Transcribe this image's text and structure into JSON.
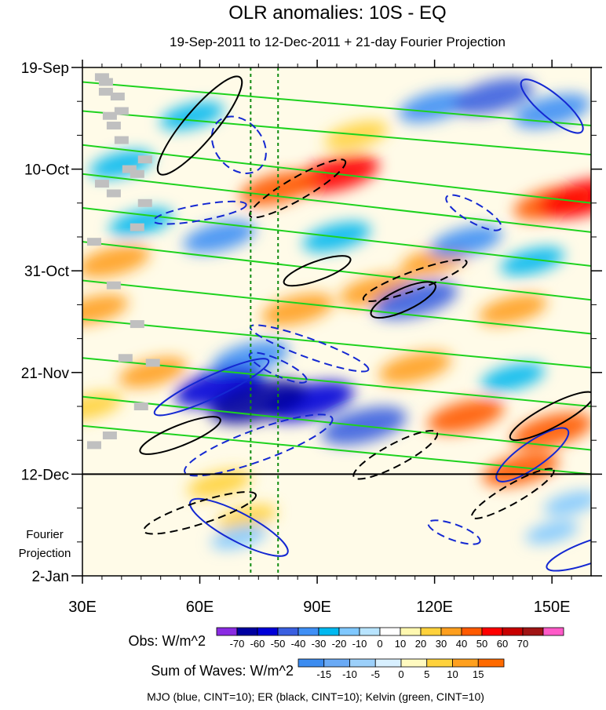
{
  "chart_data": {
    "type": "heatmap",
    "title": "OLR anomalies: 10S - EQ",
    "subtitle": "19-Sep-2011 to 12-Dec-2011 + 21-day Fourier Projection",
    "xlim": [
      30,
      160
    ],
    "x_ticks": [
      {
        "value": 30,
        "label": "30E"
      },
      {
        "value": 60,
        "label": "60E"
      },
      {
        "value": 90,
        "label": "90E"
      },
      {
        "value": 120,
        "label": "120E"
      },
      {
        "value": 150,
        "label": "150E"
      }
    ],
    "y_range_days": [
      0,
      105
    ],
    "y_ticks": [
      {
        "day": 0,
        "label": "19-Sep"
      },
      {
        "day": 21,
        "label": "10-Oct"
      },
      {
        "day": 42,
        "label": "31-Oct"
      },
      {
        "day": 63,
        "label": "21-Nov"
      },
      {
        "day": 84,
        "label": "12-Dec"
      },
      {
        "day": 105,
        "label": "2-Jan"
      }
    ],
    "projection_label_line1": "Fourier",
    "projection_label_line2": "Projection",
    "projection_start_day": 84,
    "reference_lines_lon": [
      73,
      80
    ],
    "obs_colorbar": {
      "label": "Obs: W/m^2",
      "levels": [
        -70,
        -60,
        -50,
        -40,
        -30,
        -20,
        -10,
        0,
        10,
        20,
        30,
        40,
        50,
        60,
        70
      ],
      "colors": [
        "#8a2be2",
        "#0000a0",
        "#0000d8",
        "#3a5fe0",
        "#3f8ff5",
        "#00b8f0",
        "#7fc8ff",
        "#b8e4ff",
        "#ffffff",
        "#fff8b0",
        "#ffd23c",
        "#ff9f1e",
        "#ff5a00",
        "#ff0000",
        "#c80000",
        "#a01414",
        "#ff5ac8"
      ]
    },
    "waves_colorbar": {
      "label": "Sum of Waves: W/m^2",
      "levels": [
        -15,
        -10,
        -5,
        0,
        5,
        10,
        15
      ],
      "colors": [
        "#3c8cf0",
        "#6aaaf5",
        "#9cd0fa",
        "#d8f0ff",
        "#fffac0",
        "#ffd23c",
        "#ffa01e",
        "#ff6a00"
      ]
    },
    "footer": "MJO (blue, CINT=10); ER (black, CINT=10); Kelvin (green, CINT=10)",
    "contour_series": [
      {
        "name": "MJO",
        "color": "#1428d2"
      },
      {
        "name": "ER",
        "color": "#000000"
      },
      {
        "name": "Kelvin",
        "color": "#1ed21e"
      }
    ],
    "anomaly_blobs": [
      {
        "lon": 95,
        "day": 22,
        "value": 50
      },
      {
        "lon": 80,
        "day": 25,
        "value": 40
      },
      {
        "lon": 150,
        "day": 28,
        "value": 40
      },
      {
        "lon": 158,
        "day": 27,
        "value": 55
      },
      {
        "lon": 120,
        "day": 40,
        "value": 30
      },
      {
        "lon": 105,
        "day": 46,
        "value": 35
      },
      {
        "lon": 85,
        "day": 50,
        "value": 35
      },
      {
        "lon": 140,
        "day": 50,
        "value": 30
      },
      {
        "lon": 128,
        "day": 72,
        "value": 40
      },
      {
        "lon": 150,
        "day": 75,
        "value": 45
      },
      {
        "lon": 142,
        "day": 83,
        "value": 40
      },
      {
        "lon": 65,
        "day": 86,
        "value": 25
      },
      {
        "lon": 72,
        "day": 93,
        "value": 20
      },
      {
        "lon": 38,
        "day": 40,
        "value": 35
      },
      {
        "lon": 33,
        "day": 50,
        "value": 30
      },
      {
        "lon": 48,
        "day": 63,
        "value": 30
      },
      {
        "lon": 32,
        "day": 70,
        "value": 25
      },
      {
        "lon": 115,
        "day": 62,
        "value": 35
      },
      {
        "lon": 100,
        "day": 14,
        "value": 25
      },
      {
        "lon": 128,
        "day": 36,
        "value": -35
      },
      {
        "lon": 115,
        "day": 48,
        "value": -50
      },
      {
        "lon": 73,
        "day": 60,
        "value": -40
      },
      {
        "lon": 65,
        "day": 66,
        "value": -55
      },
      {
        "lon": 88,
        "day": 69,
        "value": -55
      },
      {
        "lon": 75,
        "day": 69,
        "value": -65
      },
      {
        "lon": 102,
        "day": 74,
        "value": -50
      },
      {
        "lon": 120,
        "day": 8,
        "value": -35
      },
      {
        "lon": 135,
        "day": 6,
        "value": -45
      },
      {
        "lon": 150,
        "day": 9,
        "value": -40
      },
      {
        "lon": 65,
        "day": 35,
        "value": -35
      },
      {
        "lon": 45,
        "day": 32,
        "value": -25
      },
      {
        "lon": 95,
        "day": 35,
        "value": -30
      },
      {
        "lon": 145,
        "day": 40,
        "value": -25
      },
      {
        "lon": 140,
        "day": 64,
        "value": -25
      },
      {
        "lon": 40,
        "day": 20,
        "value": -25
      },
      {
        "lon": 58,
        "day": 10,
        "value": -25
      },
      {
        "lon": 155,
        "day": 90,
        "value": -15
      },
      {
        "lon": 70,
        "day": 97,
        "value": -15
      },
      {
        "lon": 150,
        "day": 96,
        "value": -12
      }
    ]
  }
}
